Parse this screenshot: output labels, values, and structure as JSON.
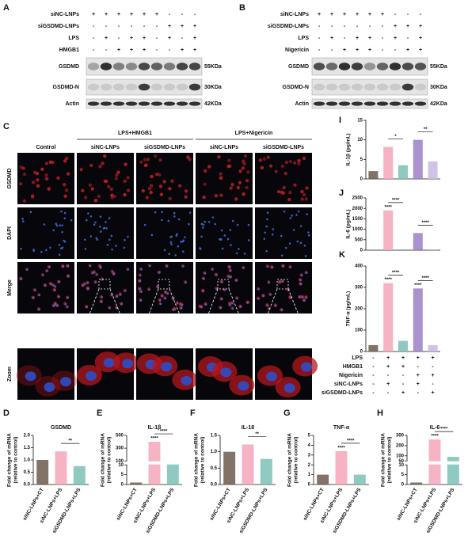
{
  "blot_A": {
    "letter": "A",
    "conditions": [
      {
        "label": "siNC-LNPs",
        "signs": [
          "+",
          "+",
          "+",
          "+",
          "+",
          "+",
          "-",
          "-",
          "-"
        ]
      },
      {
        "label": "siGSDMD-LNPs",
        "signs": [
          "-",
          "-",
          "-",
          "-",
          "-",
          "-",
          "+",
          "+",
          "+"
        ]
      },
      {
        "label": "LPS",
        "signs": [
          "-",
          "+",
          "-",
          "+",
          "+",
          "-",
          "+",
          "-",
          "+"
        ]
      },
      {
        "label": "HMGB1",
        "signs": [
          "-",
          "-",
          "+",
          "+",
          "+",
          "-",
          "-",
          "+",
          "+"
        ]
      }
    ],
    "bands": [
      {
        "label": "GSDMD",
        "kda": "55KDa"
      },
      {
        "label": "GSDMD-N",
        "kda": "30KDa"
      },
      {
        "label": "Actin",
        "kda": "42KDa"
      }
    ]
  },
  "blot_B": {
    "letter": "B",
    "conditions": [
      {
        "label": "siNC-LNPs",
        "signs": [
          "+",
          "+",
          "+",
          "+",
          "+",
          "+",
          "-",
          "-",
          "-"
        ]
      },
      {
        "label": "siGSDMD-LNPs",
        "signs": [
          "-",
          "-",
          "-",
          "-",
          "-",
          "-",
          "+",
          "+",
          "+"
        ]
      },
      {
        "label": "LPS",
        "signs": [
          "-",
          "+",
          "-",
          "+",
          "+",
          "-",
          "+",
          "-",
          "+"
        ]
      },
      {
        "label": "Nigericin",
        "signs": [
          "-",
          "-",
          "+",
          "+",
          "+",
          "-",
          "-",
          "+",
          "+"
        ]
      }
    ],
    "bands": [
      {
        "label": "GSDMD",
        "kda": "55KDa"
      },
      {
        "label": "GSDMD-N",
        "kda": "30KDa"
      },
      {
        "label": "Actin",
        "kda": "42KDa"
      }
    ]
  },
  "microscopy_C": {
    "letter": "C",
    "control": "Control",
    "groups": [
      "LPS+HMGB1",
      "LPS+Nigericin"
    ],
    "columns": [
      "siNC-LNPs",
      "siGSDMD-LNPs",
      "siNC-LNPs",
      "siGSDMD-LNPs"
    ],
    "rows": [
      "GSDMD",
      "DAPI",
      "Merge",
      "Zoom"
    ]
  },
  "table_IJK": {
    "rows": [
      {
        "label": "LPS",
        "signs": [
          "-",
          "+",
          "+",
          "+",
          "+"
        ]
      },
      {
        "label": "HMGB1",
        "signs": [
          "-",
          "+",
          "+",
          "-",
          "-"
        ]
      },
      {
        "label": "Nigericin",
        "signs": [
          "-",
          "-",
          "-",
          "+",
          "+"
        ]
      },
      {
        "label": "siNC-LNPs",
        "signs": [
          "-",
          "+",
          "-",
          "+",
          "-"
        ]
      },
      {
        "label": "siGSDMD-LNPs",
        "signs": [
          "-",
          "-",
          "+",
          "-",
          "+"
        ]
      }
    ]
  },
  "chart_data": [
    {
      "type": "bar",
      "letter": "I",
      "ylabel": [
        "IL-1β (pg/mL)"
      ],
      "values": [
        2,
        8.2,
        3.5,
        10,
        4.5
      ],
      "colors": [
        "#6b5a4e",
        "#f4a6b8",
        "#7bbfb5",
        "#9b7fc4",
        "#c9b8e3"
      ],
      "ylim": [
        0,
        15
      ],
      "yticks": [
        0,
        5,
        10,
        15
      ],
      "annotations": [
        "*",
        "**"
      ]
    },
    {
      "type": "bar",
      "letter": "J",
      "ylabel": [
        "IL-6 (pg/mL)"
      ],
      "values": [
        5,
        1900,
        40,
        820,
        40
      ],
      "colors": [
        "#6b5a4e",
        "#f4a6b8",
        "#7bbfb5",
        "#9b7fc4",
        "#c9b8e3"
      ],
      "ylim": [
        0,
        2500
      ],
      "yticks": [
        0,
        500,
        1000,
        1500,
        2000,
        2500
      ],
      "annotations": [
        "****",
        "****",
        "****"
      ]
    },
    {
      "type": "bar",
      "letter": "K",
      "ylabel": [
        "TNF-α (pg/mL)"
      ],
      "values": [
        30,
        320,
        50,
        295,
        30
      ],
      "colors": [
        "#6b5a4e",
        "#f4a6b8",
        "#7bbfb5",
        "#9b7fc4",
        "#c9b8e3"
      ],
      "ylim": [
        0,
        400
      ],
      "yticks": [
        0,
        100,
        200,
        300,
        400
      ],
      "annotations": [
        "****",
        "****",
        "****",
        "****"
      ]
    },
    {
      "type": "bar",
      "letter": "D",
      "title": "GSDMD",
      "ylabel": [
        "Fold change of mRNA",
        "(relative to control)"
      ],
      "categories": [
        "siNC-LNPs+CT",
        "siNC-LNPs+LPS",
        "siGSDMD-LNPs+LPS"
      ],
      "values": [
        1.0,
        1.35,
        0.75
      ],
      "colors": [
        "#6b5a4e",
        "#f4a6b8",
        "#7bbfb5"
      ],
      "ylim": [
        0,
        2
      ],
      "yticks": [
        {
          "value": 0,
          "label": "0.0"
        },
        0.5,
        {
          "value": 1,
          "label": "1.0"
        },
        1.5,
        {
          "value": 2,
          "label": "2.0"
        }
      ],
      "annotations": [
        "**"
      ]
    },
    {
      "type": "bar",
      "letter": "E",
      "title": "IL-1β",
      "ylabel": [
        "Fold change of mRNA",
        "(relative to control)"
      ],
      "categories": [
        "siNC-LNPs+CT",
        "siNC-LNPs+LPS",
        "siGSDMD-LNPs+LPS"
      ],
      "values": [
        1,
        400,
        60
      ],
      "colors": [
        "#6b5a4e",
        "#f4a6b8",
        "#7bbfb5"
      ],
      "ylim": [
        0,
        500
      ],
      "ybreak": [
        10,
        100
      ],
      "yticks": [
        0,
        5,
        10,
        100,
        300,
        500
      ],
      "annotations": [
        "****",
        "****"
      ]
    },
    {
      "type": "bar",
      "letter": "F",
      "title": "IL-18",
      "ylabel": [
        "Fold change of mRNA",
        "(relative to control)"
      ],
      "categories": [
        "siNC-LNPs+CT",
        "siNC-LNPs+LPS",
        "siGSDMD-LNPs+LPS"
      ],
      "values": [
        1.0,
        1.22,
        0.78
      ],
      "colors": [
        "#6b5a4e",
        "#f4a6b8",
        "#7bbfb5"
      ],
      "ylim": [
        0,
        1.5
      ],
      "yticks": [
        {
          "value": 0,
          "label": "0.0"
        },
        0.5,
        {
          "value": 1,
          "label": "1.0"
        },
        1.5
      ],
      "annotations": [
        "**"
      ]
    },
    {
      "type": "bar",
      "letter": "G",
      "title": "TNF-α",
      "ylabel": [
        "Fold change of mRNA",
        "(relative to control)"
      ],
      "categories": [
        "siNC-LNPs+CT",
        "siNC-LNPs+LPS",
        "siGSDMD-LNPs+LPS"
      ],
      "values": [
        1.0,
        3.4,
        1.0
      ],
      "colors": [
        "#6b5a4e",
        "#f4a6b8",
        "#7bbfb5"
      ],
      "ylim": [
        0,
        5
      ],
      "yticks": [
        0,
        1,
        2,
        3,
        4,
        5
      ],
      "annotations": [
        "****",
        "****"
      ]
    },
    {
      "type": "bar",
      "letter": "H",
      "title": "IL-6",
      "ylabel": [
        "Fold change of mRNA",
        "(relative to control)"
      ],
      "categories": [
        "siNC-LNPs+CT",
        "siNC-LNPs+LPS",
        "siGSDMD-LNPs+LPS"
      ],
      "values": [
        1,
        260,
        90
      ],
      "colors": [
        "#6b5a4e",
        "#f4a6b8",
        "#7bbfb5"
      ],
      "ylim": [
        0,
        300
      ],
      "ybreak": [
        10,
        50
      ],
      "yticks": [
        0,
        5,
        10,
        50,
        100,
        200,
        300
      ],
      "annotations": [
        "****",
        "****"
      ]
    }
  ]
}
